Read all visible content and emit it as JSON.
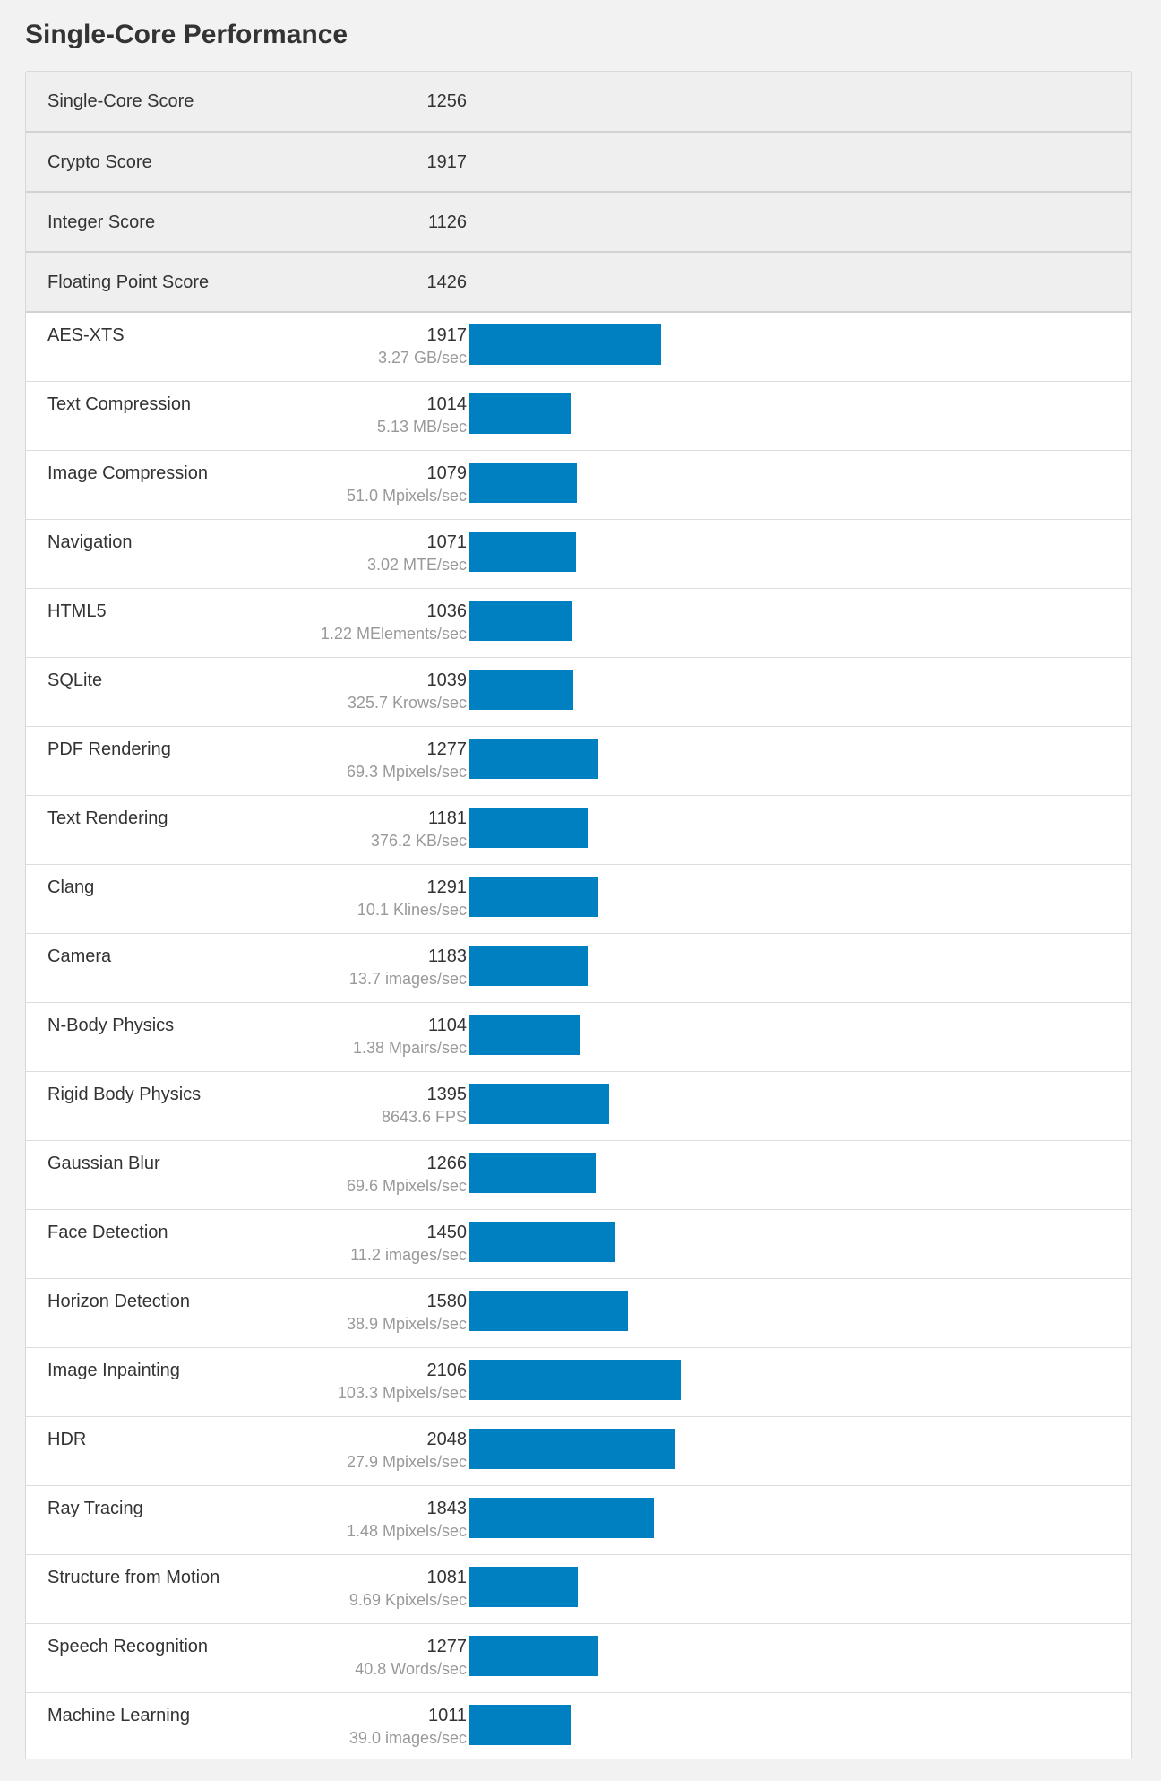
{
  "title": "Single-Core Performance",
  "colors": {
    "bar": "#0080c0",
    "summary_bg": "#efefef",
    "page_bg": "#f2f2f2"
  },
  "summary": [
    {
      "label": "Single-Core Score",
      "value": "1256"
    },
    {
      "label": "Crypto Score",
      "value": "1917"
    },
    {
      "label": "Integer Score",
      "value": "1126"
    },
    {
      "label": "Floating Point Score",
      "value": "1426"
    }
  ],
  "chart_data": {
    "type": "bar",
    "orientation": "horizontal",
    "xlim": [
      0,
      4200
    ],
    "categories": [
      "AES-XTS",
      "Text Compression",
      "Image Compression",
      "Navigation",
      "HTML5",
      "SQLite",
      "PDF Rendering",
      "Text Rendering",
      "Clang",
      "Camera",
      "N-Body Physics",
      "Rigid Body Physics",
      "Gaussian Blur",
      "Face Detection",
      "Horizon Detection",
      "Image Inpainting",
      "HDR",
      "Ray Tracing",
      "Structure from Motion",
      "Speech Recognition",
      "Machine Learning"
    ],
    "values": [
      1917,
      1014,
      1079,
      1071,
      1036,
      1039,
      1277,
      1181,
      1291,
      1183,
      1104,
      1395,
      1266,
      1450,
      1580,
      2106,
      2048,
      1843,
      1081,
      1277,
      1011
    ],
    "rates": [
      "3.27 GB/sec",
      "5.13 MB/sec",
      "51.0 Mpixels/sec",
      "3.02 MTE/sec",
      "1.22 MElements/sec",
      "325.7 Krows/sec",
      "69.3 Mpixels/sec",
      "376.2 KB/sec",
      "10.1 Klines/sec",
      "13.7 images/sec",
      "1.38 Mpairs/sec",
      "8643.6 FPS",
      "69.6 Mpixels/sec",
      "11.2 images/sec",
      "38.9 Mpixels/sec",
      "103.3 Mpixels/sec",
      "27.9 Mpixels/sec",
      "1.48 Mpixels/sec",
      "9.69 Kpixels/sec",
      "40.8 Words/sec",
      "39.0 images/sec"
    ]
  }
}
